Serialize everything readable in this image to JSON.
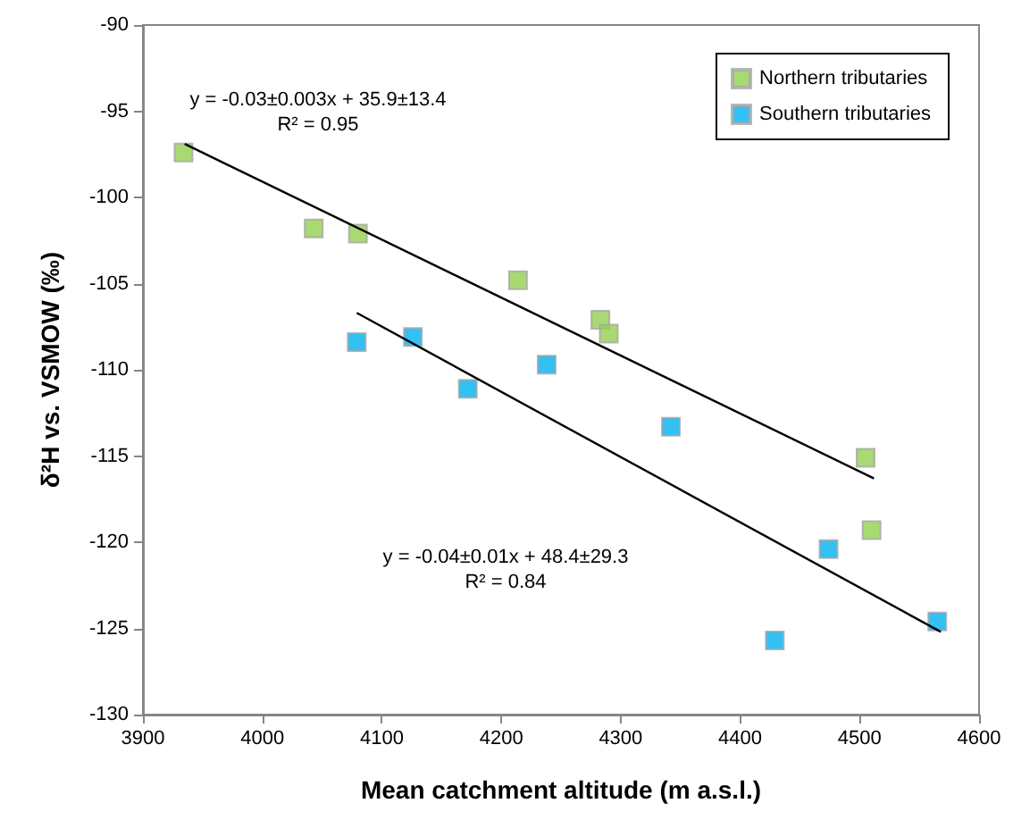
{
  "chart_data": {
    "type": "scatter",
    "xlabel": "Mean catchment altitude (m a.s.l.)",
    "ylabel": "δ²H vs. VSMOW (‰)",
    "xlim": [
      3900,
      4600
    ],
    "xticks": [
      3900,
      4000,
      4100,
      4200,
      4300,
      4400,
      4500,
      4600
    ],
    "ylim": [
      -130,
      -90
    ],
    "yticks": [
      -130,
      -125,
      -120,
      -115,
      -110,
      -105,
      -100,
      -95,
      -90
    ],
    "grid": false,
    "legend": "top right",
    "marker": "square",
    "series": [
      {
        "name": "Northern tributaries",
        "color": "#92d050",
        "x": [
          3934,
          4043,
          4080,
          4214,
          4283,
          4290,
          4505,
          4510
        ],
        "values": [
          -97.4,
          -101.8,
          -102.1,
          -104.8,
          -107.1,
          -107.9,
          -115.1,
          -119.3
        ]
      },
      {
        "name": "Southern tributaries",
        "color": "#00b0f0",
        "x": [
          4079,
          4126,
          4172,
          4238,
          4342,
          4429,
          4474,
          4565
        ],
        "values": [
          -108.4,
          -108.1,
          -111.1,
          -109.7,
          -113.3,
          -125.7,
          -120.4,
          -124.6
        ]
      },
      {
        "type": "line",
        "color": "#000000",
        "marker": "none",
        "x": [
          3935,
          4512
        ],
        "values": [
          -96.9,
          -116.3
        ]
      },
      {
        "type": "line",
        "color": "#000000",
        "marker": "none",
        "x": [
          4079,
          4568
        ],
        "values": [
          -106.7,
          -125.2
        ]
      }
    ],
    "annotations": [
      "y = -0.03±0.003x + 35.9±13.4\nR² = 0.95",
      "y = -0.04±0.01x + 48.4±29.3\nR² = 0.84"
    ]
  }
}
